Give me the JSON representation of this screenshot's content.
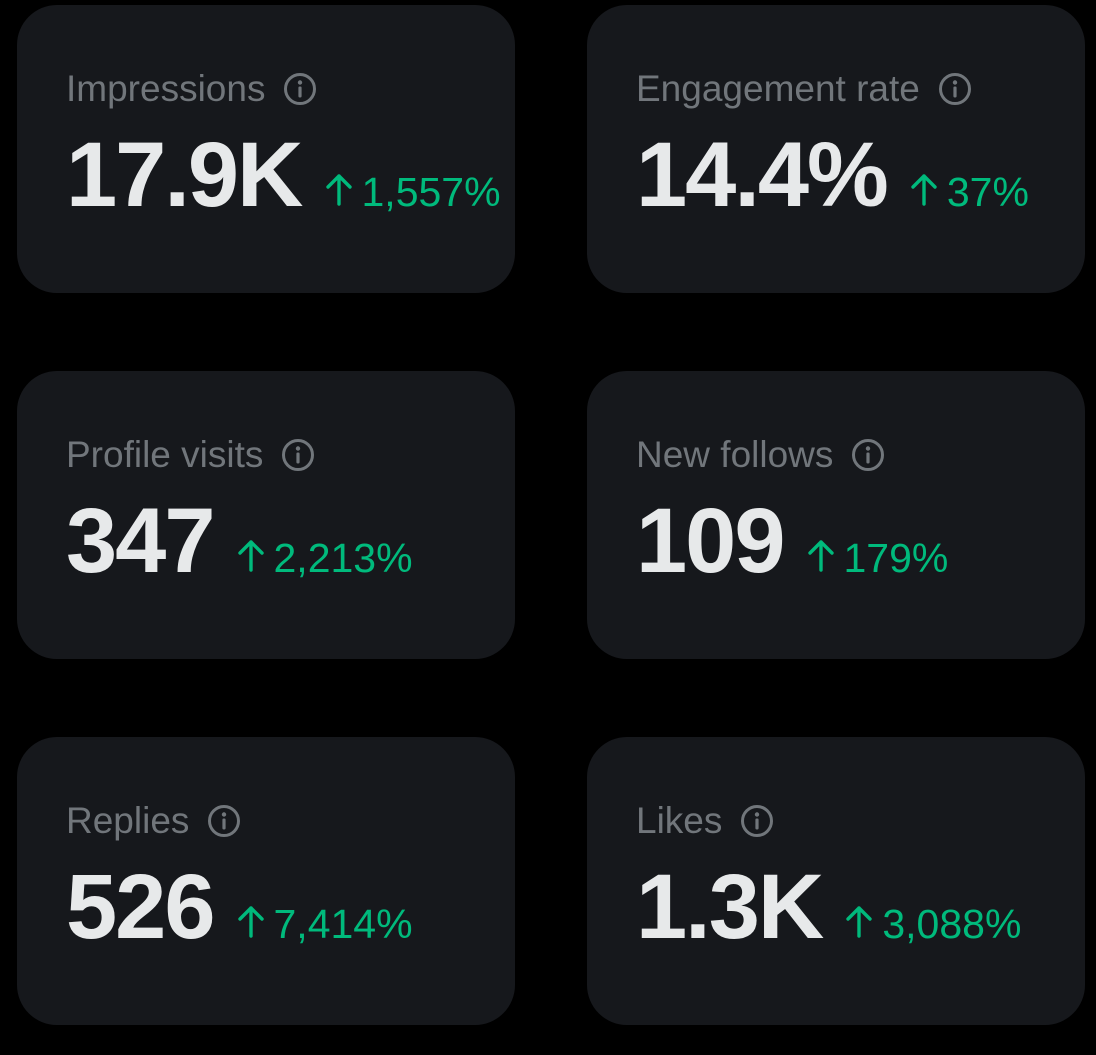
{
  "colors": {
    "background": "#000000",
    "card": "#16181c",
    "label": "#71767b",
    "value": "#e7e9ea",
    "positive": "#00ba7c"
  },
  "metrics": [
    {
      "label": "Impressions",
      "value": "17.9K",
      "change": "1,557%",
      "direction_icon": "arrow-up-icon"
    },
    {
      "label": "Engagement rate",
      "value": "14.4%",
      "change": "37%",
      "direction_icon": "arrow-up-icon"
    },
    {
      "label": "Profile visits",
      "value": "347",
      "change": "2,213%",
      "direction_icon": "arrow-up-icon"
    },
    {
      "label": "New follows",
      "value": "109",
      "change": "179%",
      "direction_icon": "arrow-up-icon"
    },
    {
      "label": "Replies",
      "value": "526",
      "change": "7,414%",
      "direction_icon": "arrow-up-icon"
    },
    {
      "label": "Likes",
      "value": "1.3K",
      "change": "3,088%",
      "direction_icon": "arrow-up-icon"
    }
  ]
}
